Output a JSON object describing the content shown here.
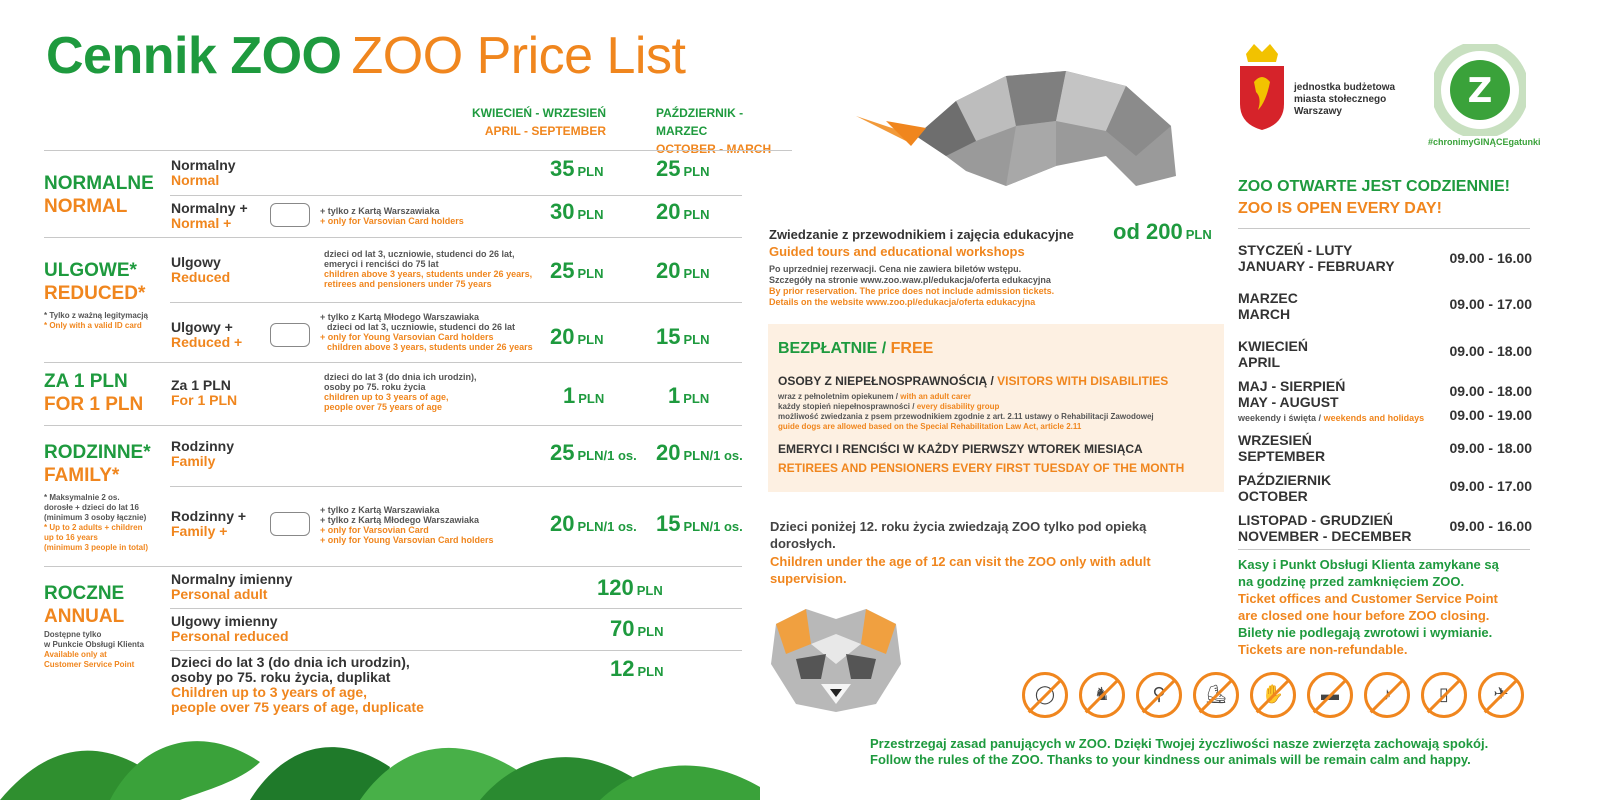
{
  "title": {
    "pl": "Cennik ZOO",
    "en": "ZOO Price List"
  },
  "seasons": {
    "s1_pl": "KWIECIEŃ - WRZESIEŃ",
    "s1_en": "APRIL - SEPTEMBER",
    "s2_pl": "PAŹDZIERNIK - MARZEC",
    "s2_en": "OCTOBER - MARCH"
  },
  "categories": {
    "normal": {
      "pl": "NORMALNE",
      "en": "NORMAL"
    },
    "reduced": {
      "pl": "ULGOWE*",
      "en": "REDUCED*",
      "note_pl": "* Tylko z ważną legitymacją",
      "note_en": "* Only with a valid ID card"
    },
    "one": {
      "pl": "ZA 1 PLN",
      "en": "FOR 1 PLN"
    },
    "family": {
      "pl": "RODZINNE*",
      "en": "FAMILY*",
      "note1_pl": "* Maksymalnie 2 os.",
      "note2_pl": "dorosłe + dzieci do lat 16",
      "note3_pl": "(minimum 3 osoby łącznie)",
      "note1_en": "* Up to 2 adults + children",
      "note2_en": "up to 16 years",
      "note3_en": "(minimum 3 people in total)"
    },
    "annual": {
      "pl": "ROCZNE",
      "en": "ANNUAL",
      "note1_pl": "Dostępne tylko",
      "note2_pl": "w Punkcie Obsługi Klienta",
      "note1_en": "Available only at",
      "note2_en": "Customer Service Point"
    }
  },
  "rows": {
    "normal": {
      "pl": "Normalny",
      "en": "Normal",
      "p1": "35",
      "p2": "25"
    },
    "normal_plus": {
      "pl": "Normalny +",
      "en": "Normal +",
      "n1": "+ tylko z Kartą Warszawiaka",
      "n2": "+ only for Varsovian Card holders",
      "p1": "30",
      "p2": "20"
    },
    "reduced": {
      "pl": "Ulgowy",
      "en": "Reduced",
      "n1": "dzieci od lat 3, uczniowie, studenci do 26 lat,",
      "n2": "emeryci i renciści do 75 lat",
      "n3": "children above 3 years, students under 26 years,",
      "n4": "retirees and pensioners under 75 years",
      "p1": "25",
      "p2": "20"
    },
    "reduced_plus": {
      "pl": "Ulgowy +",
      "en": "Reduced +",
      "n1": "+ tylko z Kartą Młodego Warszawiaka",
      "n2": "dzieci od lat 3, uczniowie, studenci do 26 lat",
      "n3": "+ only for Young Varsovian Card holders",
      "n4": "children above 3 years, students under 26 years",
      "p1": "20",
      "p2": "15"
    },
    "one": {
      "pl": "Za 1 PLN",
      "en": "For 1 PLN",
      "n1": "dzieci do lat 3 (do dnia ich urodzin),",
      "n2": "osoby po 75. roku życia",
      "n3": "children up to 3 years of age,",
      "n4": "people over 75 years of age",
      "p1": "1",
      "p2": "1"
    },
    "family": {
      "pl": "Rodzinny",
      "en": "Family",
      "p1": "25",
      "p2": "20"
    },
    "family_plus": {
      "pl": "Rodzinny +",
      "en": "Family +",
      "n1": "+ tylko z Kartą Warszawiaka",
      "n2": "+ tylko z Kartą Młodego Warszawiaka",
      "n3": "+ only for Varsovian Card",
      "n4": "+ only for Young Varsovian Card holders",
      "p1": "20",
      "p2": "15"
    },
    "annual_adult": {
      "pl": "Normalny imienny",
      "en": "Personal adult",
      "p": "120"
    },
    "annual_reduced": {
      "pl": "Ulgowy imienny",
      "en": "Personal reduced",
      "p": "70"
    },
    "annual_dup": {
      "pl1": "Dzieci do lat 3 (do dnia ich urodzin),",
      "pl2": "osoby po 75. roku życia, duplikat",
      "en1": "Children up to 3 years of age,",
      "en2": "people over 75 years of age, duplicate",
      "p": "12"
    }
  },
  "currency": "PLN",
  "per_person": "PLN/1 os.",
  "guided": {
    "pl": "Zwiedzanie z przewodnikiem i zajęcia edukacyjne",
    "en": "Guided tours and educational workshops",
    "price": "od 200",
    "n1": "Po uprzedniej rezerwacji. Cena nie zawiera biletów wstępu.",
    "n2": "Szczegóły na stronie www.zoo.waw.pl/edukacja/oferta edukacyjna",
    "n3": "By prior reservation. The price does not include admission tickets.",
    "n4": "Details on the website www.zoo.pl/edukacja/oferta edukacyjna"
  },
  "free": {
    "title_pl": "BEZPŁATNIE /",
    "title_en": "FREE",
    "dis_pl": "OSOBY Z NIEPEŁNOSPRAWNOŚCIĄ /",
    "dis_en": "VISITORS WITH DISABILITIES",
    "d1_pl": "wraz z pełnoletnim opiekunem /",
    "d1_en": "with an adult carer",
    "d2_pl": "każdy stopień niepełnosprawności /",
    "d2_en": "every disability group",
    "d3_pl": "możliwość zwiedzania z psem przewodnikiem zgodnie z art. 2.11 ustawy o Rehabilitacji Zawodowej",
    "d3_en": "guide dogs are allowed based on the Special Rehabilitation Law Act, article 2.11",
    "ret_pl": "EMERYCI I RENCIŚCI W KAŻDY PIERWSZY WTOREK MIESIĄCA",
    "ret_en": "RETIREES AND PENSIONERS EVERY FIRST TUESDAY OF THE MONTH"
  },
  "children": {
    "pl": "Dzieci poniżej 12. roku życia zwiedzają ZOO tylko pod opieką dorosłych.",
    "en": "Children under the age of 12 can visit the ZOO only with adult supervision."
  },
  "logo": {
    "city1": "jednostka budżetowa",
    "city2": "miasta stołecznego",
    "city3": "Warszawy",
    "hashtag": "#chronimyGINĄCEgatunki"
  },
  "open": {
    "pl": "ZOO OTWARTE JEST CODZIENNIE!",
    "en": "ZOO IS OPEN EVERY DAY!"
  },
  "hours": [
    {
      "pl": "STYCZEŃ - LUTY",
      "en": "JANUARY - FEBRUARY",
      "h": "09.00 - 16.00"
    },
    {
      "pl": "MARZEC",
      "en": "MARCH",
      "h": "09.00 - 17.00"
    },
    {
      "pl": "KWIECIEŃ",
      "en": "APRIL",
      "h": "09.00 - 18.00"
    },
    {
      "pl": "MAJ - SIERPIEŃ",
      "en": "MAY - AUGUST",
      "h": "09.00 - 18.00",
      "extra_pl": "weekendy i święta /",
      "extra_en": "weekends and holidays",
      "h2": "09.00 - 19.00"
    },
    {
      "pl": "WRZESIEŃ",
      "en": "SEPTEMBER",
      "h": "09.00 - 18.00"
    },
    {
      "pl": "PAŹDZIERNIK",
      "en": "OCTOBER",
      "h": "09.00 - 17.00"
    },
    {
      "pl": "LISTOPAD - GRUDZIEŃ",
      "en": "NOVEMBER - DECEMBER",
      "h": "09.00 - 16.00"
    }
  ],
  "closing": {
    "pl1": "Kasy i Punkt Obsługi Klienta zamykane są",
    "pl2": "na godzinę przed zamknięciem ZOO.",
    "en1": "Ticket offices and Customer Service Point",
    "en2": "are closed one hour before ZOO closing.",
    "pl3": "Bilety nie podlegają zwrotowi i wymianie.",
    "en3": "Tickets are non-refundable."
  },
  "prohibited_icons": [
    "no-balloons-icon",
    "no-dogs-icon",
    "no-bicycles-icon",
    "no-scooters-icon",
    "no-feeding-icon",
    "no-smoking-icon",
    "no-trumpets-icon",
    "no-alcohol-icon",
    "no-drones-icon"
  ],
  "footer": {
    "pl": "Przestrzegaj zasad panujących w ZOO. Dzięki Twojej życzliwości nasze zwierzęta zachowają spokój.",
    "en": "Follow the rules of the ZOO. Thanks to your kindness our animals will be remain calm and happy."
  },
  "colors": {
    "green": "#1e9a3e",
    "orange": "#f0861e",
    "free_bg": "#fdf0e2"
  }
}
